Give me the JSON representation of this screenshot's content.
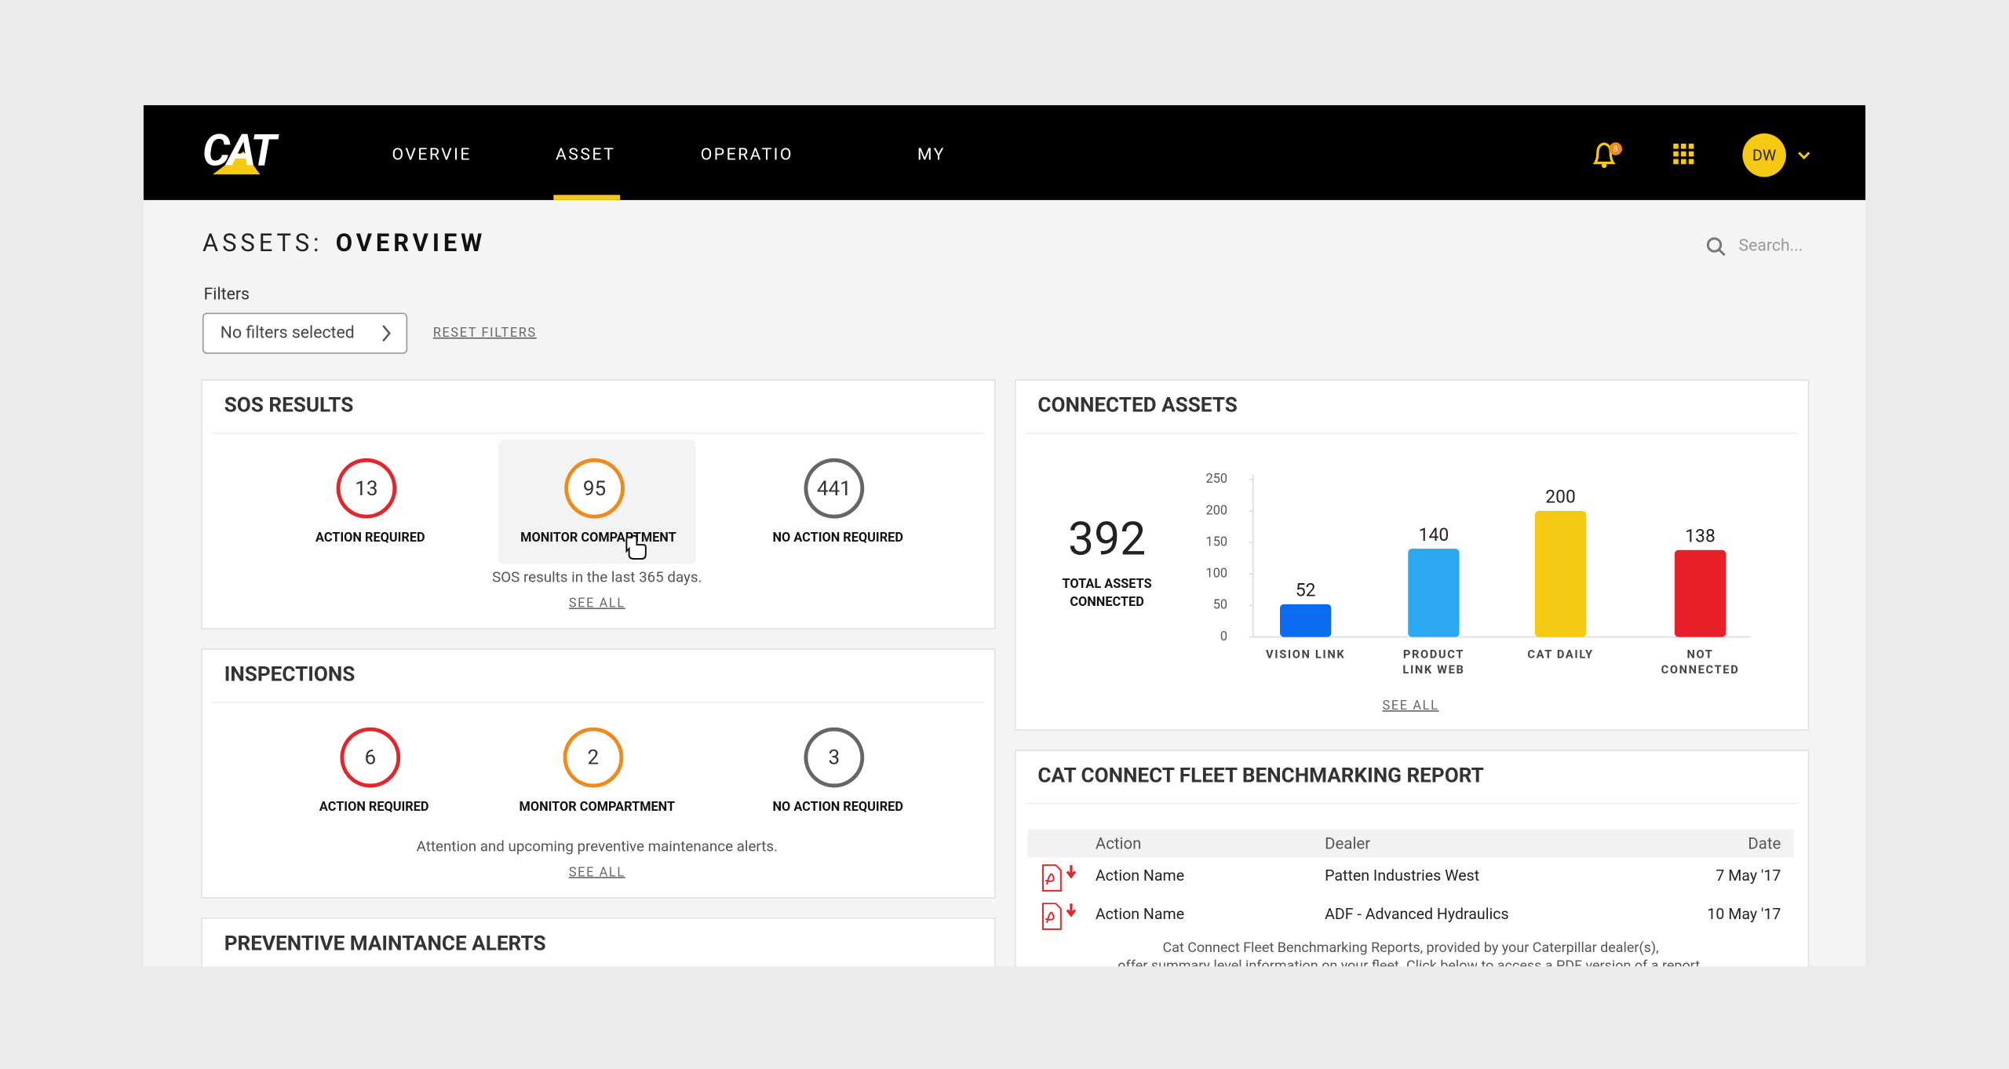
{
  "header": {
    "logo": "CAT",
    "nav": [
      "OVERVIE",
      "ASSET",
      "OPERATIO",
      "MY"
    ],
    "active_nav": 1,
    "notifications": "8",
    "avatar": "DW",
    "search_placeholder": "Search..."
  },
  "page": {
    "title_prefix": "ASSETS:",
    "title": "OVERVIEW",
    "filters_label": "Filters",
    "filter_value": "No filters selected",
    "reset": "RESET FILTERS"
  },
  "sos": {
    "title": "SOS RESULTS",
    "items": [
      {
        "value": 13,
        "label": "ACTION REQUIRED",
        "color": "#e3262b"
      },
      {
        "value": 95,
        "label": "MONITOR COMPARTMENT",
        "color": "#f08a1c"
      },
      {
        "value": 441,
        "label": "NO ACTION REQUIRED",
        "color": "#666666"
      }
    ],
    "note": "SOS results in the last 365 days.",
    "link": "SEE ALL"
  },
  "inspections": {
    "title": "INSPECTIONS",
    "items": [
      {
        "value": 6,
        "label": "ACTION REQUIRED",
        "color": "#e3262b"
      },
      {
        "value": 2,
        "label": "MONITOR COMPARTMENT",
        "color": "#f08a1c"
      },
      {
        "value": 3,
        "label": "NO ACTION REQUIRED",
        "color": "#666666"
      }
    ],
    "note": "Attention and upcoming preventive maintenance alerts.",
    "link": "SEE ALL"
  },
  "preventive": {
    "title": "PREVENTIVE MAINTANCE ALERTS"
  },
  "connected_assets": {
    "title": "CONNECTED ASSETS",
    "total": 392,
    "total_label": [
      "TOTAL ASSETS",
      "CONNECTED"
    ],
    "link": "SEE ALL",
    "chart": {
      "type": "bar",
      "categories": [
        [
          "VISION LINK"
        ],
        [
          "PRODUCT",
          "LINK WEB"
        ],
        [
          "CAT DAILY"
        ],
        [
          "NOT",
          "CONNECTED"
        ]
      ],
      "values": [
        52,
        140,
        200,
        138
      ],
      "colors": [
        "#0a6cf0",
        "#2aa8f2",
        "#f6c915",
        "#e8202a"
      ],
      "ylim": [
        0,
        250
      ],
      "yticks": [
        0,
        50,
        100,
        150,
        200,
        250
      ]
    }
  },
  "benchmark": {
    "title": "CAT CONNECT FLEET BENCHMARKING REPORT",
    "columns": [
      "Action",
      "Dealer",
      "Date"
    ],
    "rows": [
      [
        "Action Name",
        "Patten Industries West",
        "7 May '17"
      ],
      [
        "Action Name",
        "ADF - Advanced Hydraulics",
        "10 May '17"
      ]
    ],
    "note": [
      "Cat Connect Fleet Benchmarking Reports, provided by your Caterpillar dealer(s),",
      "offer summary level information on your fleet. Click below to access a PDF version of a report."
    ]
  }
}
